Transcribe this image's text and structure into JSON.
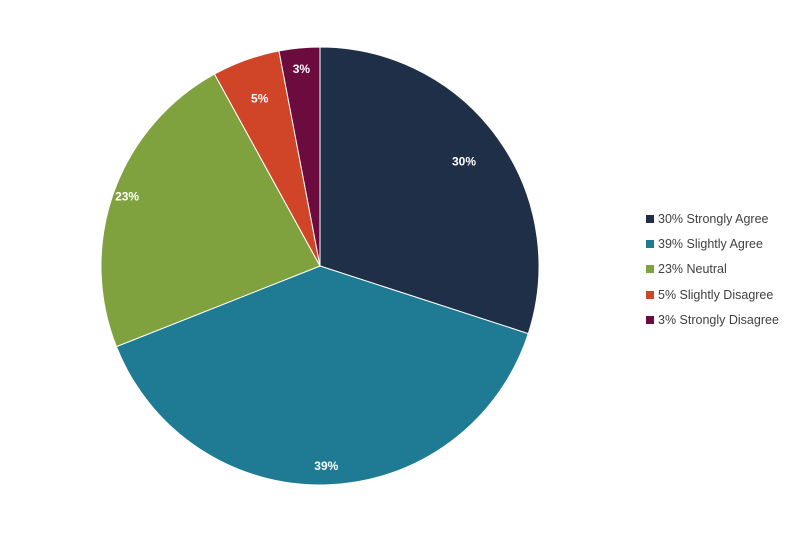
{
  "chart_data": {
    "type": "pie",
    "title": "",
    "start_angle_deg": 0,
    "direction": "clockwise",
    "legend_position": "right",
    "slices": [
      {
        "label": "30% Strongly Agree",
        "data_label": "30%",
        "value": 30,
        "color": "#1f2f48"
      },
      {
        "label": "39% Slightly Agree",
        "data_label": "39%",
        "value": 39,
        "color": "#1e7b93"
      },
      {
        "label": "23% Neutral",
        "data_label": "23%",
        "value": 23,
        "color": "#7fa23e"
      },
      {
        "label": "5% Slightly Disagree",
        "data_label": "5%",
        "value": 5,
        "color": "#d04427"
      },
      {
        "label": "3% Strongly Disagree",
        "data_label": "3%",
        "value": 3,
        "color": "#6c0b3e"
      }
    ]
  }
}
